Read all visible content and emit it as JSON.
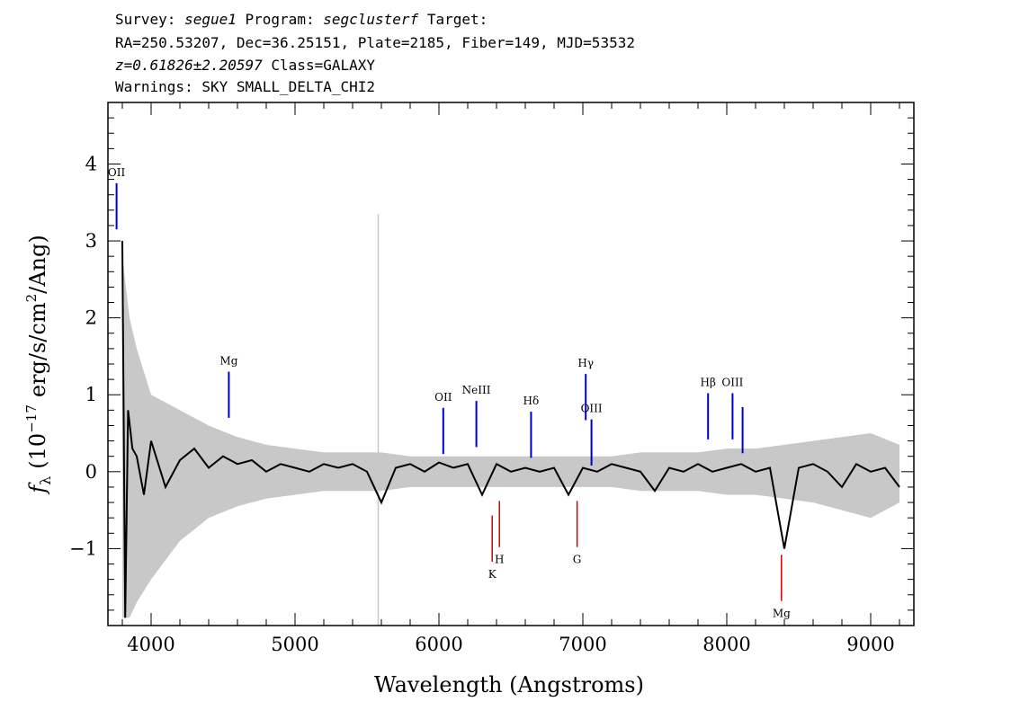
{
  "header": {
    "line1": {
      "survey_label": "Survey:",
      "survey_value": "segue1",
      "program_label": "Program:",
      "program_value": "segclusterf",
      "target_label": "Target:"
    },
    "line2": "RA=250.53207, Dec=36.25151, Plate=2185, Fiber=149, MJD=53532",
    "line3": {
      "redshift": "z=0.61826±2.20597",
      "class": "Class=GALAXY"
    },
    "line4": "Warnings: SKY SMALL_DELTA_CHI2"
  },
  "colors": {
    "flux": "#000000",
    "error": "#c8c8c8",
    "emission": "#0000cc",
    "absorption": "#cc0000",
    "frame": "#000000"
  },
  "chart_data": {
    "type": "line",
    "title": "",
    "xlabel": "Wavelength (Angstroms)",
    "ylabel_parts": {
      "symbol": "f",
      "subscript": "λ",
      "open": "(10",
      "exponent": "−17",
      "middle": "erg/s/cm",
      "power": "2",
      "close": "/Ang)"
    },
    "xlim": [
      3700,
      9300
    ],
    "ylim": [
      -2.0,
      4.8
    ],
    "x_ticks": [
      4000,
      5000,
      6000,
      7000,
      8000,
      9000
    ],
    "y_ticks": [
      -1,
      0,
      1,
      2,
      3,
      4
    ],
    "x_tick_labels": [
      "4000",
      "5000",
      "6000",
      "7000",
      "8000",
      "9000"
    ],
    "y_tick_labels": [
      "−1",
      "0",
      "1",
      "2",
      "3",
      "4"
    ],
    "grid": false,
    "series": [
      {
        "role": "flux",
        "x": [
          3800,
          3820,
          3840,
          3870,
          3900,
          3950,
          4000,
          4100,
          4200,
          4300,
          4400,
          4500,
          4600,
          4700,
          4800,
          4900,
          5000,
          5100,
          5200,
          5300,
          5400,
          5500,
          5600,
          5700,
          5800,
          5900,
          6000,
          6100,
          6200,
          6300,
          6400,
          6500,
          6600,
          6700,
          6800,
          6900,
          7000,
          7100,
          7200,
          7300,
          7400,
          7500,
          7600,
          7700,
          7800,
          7900,
          8000,
          8100,
          8200,
          8300,
          8400,
          8500,
          8600,
          8700,
          8800,
          8900,
          9000,
          9100,
          9200
        ],
        "y": [
          3.0,
          -1.9,
          0.8,
          0.3,
          0.2,
          -0.3,
          0.4,
          -0.2,
          0.15,
          0.3,
          0.05,
          0.2,
          0.1,
          0.15,
          0.0,
          0.1,
          0.05,
          0.0,
          0.1,
          0.05,
          0.1,
          0.0,
          -0.4,
          0.05,
          0.1,
          0.0,
          0.12,
          0.05,
          0.1,
          -0.3,
          0.1,
          0.0,
          0.05,
          0.0,
          0.05,
          -0.3,
          0.05,
          0.0,
          0.1,
          0.05,
          0.0,
          -0.25,
          0.05,
          0.0,
          0.1,
          0.0,
          0.05,
          0.1,
          0.0,
          0.05,
          -1.0,
          0.05,
          0.1,
          0.0,
          -0.2,
          0.1,
          0.0,
          0.05,
          -0.2
        ]
      },
      {
        "role": "error",
        "x": [
          3800,
          3850,
          3900,
          4000,
          4200,
          4400,
          4600,
          4800,
          5000,
          5200,
          5400,
          5600,
          5800,
          6000,
          6200,
          6400,
          6600,
          6800,
          7000,
          7200,
          7400,
          7600,
          7800,
          8000,
          8200,
          8400,
          8600,
          8800,
          9000,
          9200
        ],
        "y_upper": [
          2.8,
          2.0,
          1.6,
          1.0,
          0.8,
          0.6,
          0.45,
          0.35,
          0.3,
          0.25,
          0.25,
          0.25,
          0.2,
          0.2,
          0.2,
          0.2,
          0.2,
          0.2,
          0.2,
          0.2,
          0.25,
          0.25,
          0.25,
          0.3,
          0.3,
          0.35,
          0.4,
          0.45,
          0.5,
          0.35
        ],
        "y_lower": [
          -1.9,
          -1.9,
          -1.7,
          -1.4,
          -0.9,
          -0.6,
          -0.45,
          -0.35,
          -0.3,
          -0.25,
          -0.25,
          -0.25,
          -0.2,
          -0.2,
          -0.2,
          -0.2,
          -0.2,
          -0.2,
          -0.2,
          -0.2,
          -0.25,
          -0.25,
          -0.25,
          -0.3,
          -0.3,
          -0.35,
          -0.4,
          -0.5,
          -0.6,
          -0.4
        ]
      }
    ],
    "sky_line": {
      "x": 5578,
      "y_top": 3.35,
      "y_bottom": -2.0
    },
    "emission_lines": [
      {
        "label": "OII",
        "x": 3760,
        "y_top": 3.75,
        "y_bottom": 3.15
      },
      {
        "label": "Mg",
        "x": 4540,
        "y_top": 1.3,
        "y_bottom": 0.7
      },
      {
        "label": "OII",
        "x": 6030,
        "y_top": 0.83,
        "y_bottom": 0.23
      },
      {
        "label": "NeIII",
        "x": 6260,
        "y_top": 0.92,
        "y_bottom": 0.32
      },
      {
        "label": "Hδ",
        "x": 6640,
        "y_top": 0.78,
        "y_bottom": 0.18
      },
      {
        "label": "Hγ",
        "x": 7020,
        "y_top": 1.27,
        "y_bottom": 0.67
      },
      {
        "label": "OIII",
        "x": 7060,
        "y_top": 0.68,
        "y_bottom": 0.08
      },
      {
        "label": "Hβ",
        "x": 7870,
        "y_top": 1.02,
        "y_bottom": 0.42
      },
      {
        "label": "OIII",
        "x": 8040,
        "y_top": 1.02,
        "y_bottom": 0.42
      },
      {
        "label": "",
        "x": 8110,
        "y_top": 0.84,
        "y_bottom": 0.24
      }
    ],
    "absorption_lines": [
      {
        "label": "K",
        "x": 6370,
        "y_top": -0.57,
        "y_bottom": -1.17
      },
      {
        "label": "H",
        "x": 6420,
        "y_top": -0.38,
        "y_bottom": -0.98
      },
      {
        "label": "G",
        "x": 6960,
        "y_top": -0.38,
        "y_bottom": -0.98
      },
      {
        "label": "Mg",
        "x": 8380,
        "y_top": -1.08,
        "y_bottom": -1.68
      }
    ]
  }
}
